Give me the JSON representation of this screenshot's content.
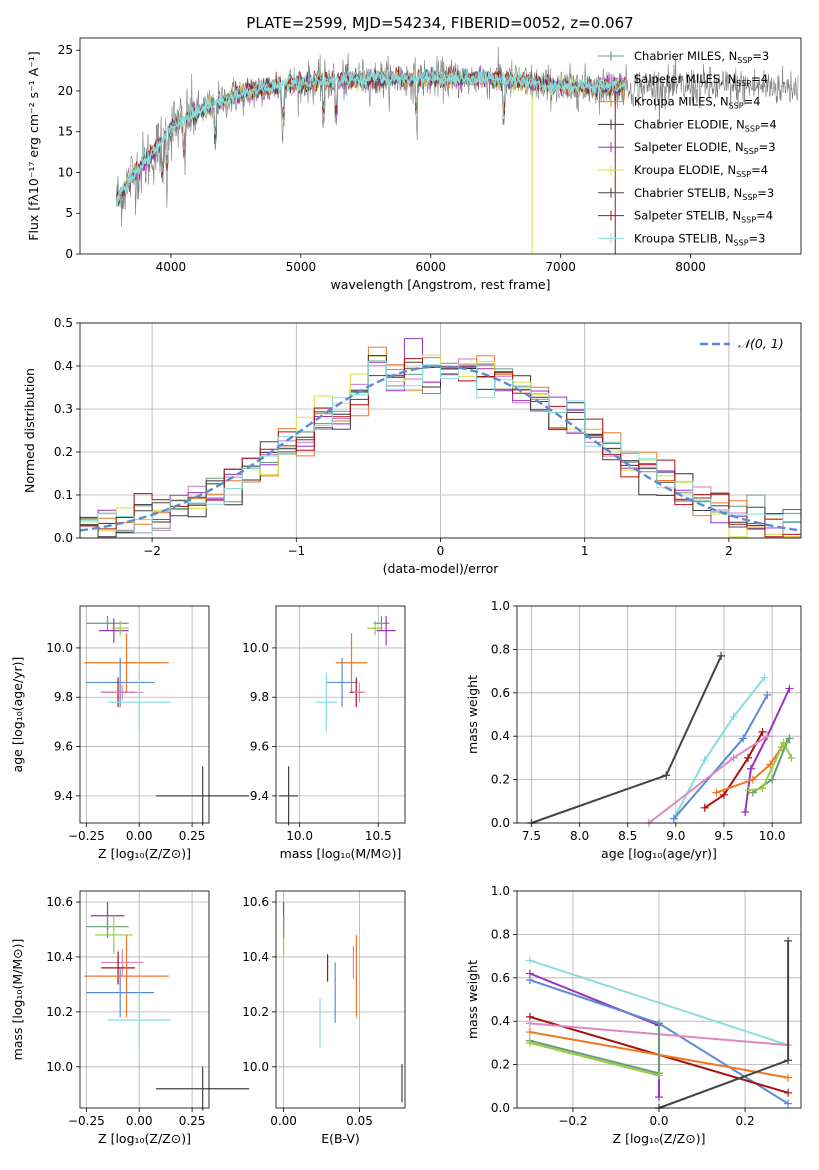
{
  "figure": {
    "title": "PLATE=2599, MJD=54234, FIBERID=0052, z=0.067",
    "colors": [
      "#6a9a7a",
      "#cc77cc",
      "#ee7722",
      "#333333",
      "#9933bb",
      "#dddd44",
      "#444444",
      "#aa1111",
      "#88dddd",
      "#5b8bd6",
      "#dd88bb",
      "#99cc44"
    ]
  },
  "chart_data": [
    {
      "id": "spectrum",
      "type": "line",
      "xlabel": "wavelength [Angstrom, rest frame]",
      "ylabel": "Flux [fλ10⁻¹⁷ erg cm⁻² s⁻¹ A⁻¹]",
      "xlim": [
        3300,
        8850
      ],
      "ylim": [
        0,
        26.5
      ],
      "xticks": [
        4000,
        5000,
        6000,
        7000,
        8000
      ],
      "yticks": [
        0,
        5,
        10,
        15,
        20,
        25
      ],
      "grid": false,
      "legend_position": "top-right",
      "legend": [
        "Chabrier MILES, N_SSP=3",
        "Salpeter MILES, N_SSP=4",
        "Kroupa MILES, N_SSP=4",
        "Chabrier ELODIE, N_SSP=4",
        "Salpeter ELODIE, N_SSP=3",
        "Kroupa ELODIE, N_SSP=4",
        "Chabrier STELIB, N_SSP=3",
        "Salpeter STELIB, N_SSP=4",
        "Kroupa STELIB, N_SSP=3"
      ],
      "legend_colors": [
        "#6a9a7a",
        "#cc77cc",
        "#ee7722",
        "#333333",
        "#9933bb",
        "#dddd44",
        "#444444",
        "#aa1111",
        "#88dddd"
      ],
      "continuum": {
        "x": [
          3580,
          3700,
          3900,
          4000,
          4200,
          4500,
          4800,
          5000,
          5500,
          6000,
          6500,
          7000,
          7300,
          7500
        ],
        "y": [
          6.5,
          9.5,
          13,
          15.5,
          17.5,
          19.5,
          20.5,
          21,
          21.5,
          21.5,
          21.5,
          20.5,
          20.5,
          20.5
        ]
      },
      "data_x_range": [
        3580,
        8830
      ],
      "model_x_range": [
        3580,
        7500
      ]
    },
    {
      "id": "residuals",
      "type": "histogram",
      "xlabel": "(data-model)/error",
      "ylabel": "Normed distribution",
      "xlim": [
        -2.5,
        2.5
      ],
      "ylim": [
        0,
        0.5
      ],
      "xticks": [
        -2,
        -1,
        0,
        1,
        2
      ],
      "yticks": [
        0.0,
        0.1,
        0.2,
        0.3,
        0.4,
        0.5
      ],
      "grid": true,
      "bins": 40,
      "bin_range": [
        -2.5,
        2.5
      ],
      "gaussian_legend": "𝒩(0, 1)",
      "gaussian_color": "#5b8bd6",
      "n_models": 9,
      "peak_values": [
        0.47,
        0.45,
        0.48,
        0.43,
        0.46
      ]
    },
    {
      "id": "age-vs-Z",
      "type": "errorbar",
      "xlabel": "Z [log₁₀(Z/Z⊙)]",
      "ylabel": "age  [log₁₀(age/yr)]",
      "xlim": [
        -0.28,
        0.33
      ],
      "ylim": [
        9.29,
        10.17
      ],
      "xticks": [
        -0.25,
        0.0,
        0.25
      ],
      "xticklabels": [
        "−0.25",
        "0.00",
        "0.25"
      ],
      "yticks": [
        9.4,
        9.6,
        9.8,
        10.0
      ],
      "grid": true,
      "points": [
        {
          "x": -0.15,
          "y": 10.1,
          "xerr": 0.1,
          "yerr": 0.03,
          "color": "#6a9a7a"
        },
        {
          "x": -0.12,
          "y": 10.07,
          "xerr": 0.07,
          "yerr": 0.05,
          "color": "#9933bb"
        },
        {
          "x": -0.09,
          "y": 10.08,
          "xerr": 0.04,
          "yerr": 0.03,
          "color": "#99cc44"
        },
        {
          "x": -0.06,
          "y": 9.94,
          "xerr": 0.2,
          "yerr": 0.12,
          "color": "#ee7722"
        },
        {
          "x": -0.09,
          "y": 9.86,
          "xerr": 0.16,
          "yerr": 0.1,
          "color": "#5b8bd6"
        },
        {
          "x": -0.1,
          "y": 9.82,
          "xerr": 0.08,
          "yerr": 0.06,
          "color": "#aa1111"
        },
        {
          "x": -0.08,
          "y": 9.82,
          "xerr": 0.1,
          "yerr": 0.03,
          "color": "#dd88bb"
        },
        {
          "x": 0.0,
          "y": 9.78,
          "xerr": 0.15,
          "yerr": 0.12,
          "color": "#88dddd"
        },
        {
          "x": 0.3,
          "y": 9.4,
          "xerr": 0.22,
          "yerr": 0.12,
          "color": "#444444"
        }
      ]
    },
    {
      "id": "age-vs-mass",
      "type": "errorbar",
      "xlabel": "mass [log₁₀(M/M⊙)]",
      "xlim": [
        9.85,
        10.67
      ],
      "ylim": [
        9.29,
        10.17
      ],
      "xticks": [
        10.0,
        10.5
      ],
      "xticklabels": [
        "10.0",
        "10.5"
      ],
      "yticks": [
        9.4,
        9.6,
        9.8,
        10.0
      ],
      "grid": true,
      "points": [
        {
          "x": 10.52,
          "y": 10.1,
          "xerr": 0.05,
          "yerr": 0.03,
          "color": "#6a9a7a"
        },
        {
          "x": 10.55,
          "y": 10.07,
          "xerr": 0.06,
          "yerr": 0.06,
          "color": "#9933bb"
        },
        {
          "x": 10.48,
          "y": 10.08,
          "xerr": 0.05,
          "yerr": 0.03,
          "color": "#99cc44"
        },
        {
          "x": 10.33,
          "y": 9.94,
          "xerr": 0.1,
          "yerr": 0.12,
          "color": "#ee7722"
        },
        {
          "x": 10.27,
          "y": 9.86,
          "xerr": 0.1,
          "yerr": 0.1,
          "color": "#5b8bd6"
        },
        {
          "x": 10.36,
          "y": 9.82,
          "xerr": 0.04,
          "yerr": 0.06,
          "color": "#aa1111"
        },
        {
          "x": 10.38,
          "y": 9.82,
          "xerr": 0.04,
          "yerr": 0.04,
          "color": "#dd88bb"
        },
        {
          "x": 10.17,
          "y": 9.78,
          "xerr": 0.07,
          "yerr": 0.12,
          "color": "#88dddd"
        },
        {
          "x": 9.93,
          "y": 9.4,
          "xerr": 0.06,
          "yerr": 0.12,
          "color": "#444444"
        }
      ]
    },
    {
      "id": "massweight-vs-age",
      "type": "line",
      "xlabel": "age  [log₁₀(age/yr)]",
      "ylabel": "mass weight",
      "xlim": [
        7.35,
        10.3
      ],
      "ylim": [
        0,
        1.0
      ],
      "xticks": [
        7.5,
        8.0,
        8.5,
        9.0,
        9.5,
        10.0
      ],
      "xticklabels": [
        "7.5",
        "8.0",
        "8.5",
        "9.0",
        "9.5",
        "10.0"
      ],
      "yticks": [
        0.0,
        0.2,
        0.4,
        0.6,
        0.8,
        1.0
      ],
      "grid": true,
      "series": [
        {
          "color": "#444444",
          "x": [
            7.5,
            8.9,
            9.47
          ],
          "y": [
            0.0,
            0.22,
            0.77
          ]
        },
        {
          "color": "#88dddd",
          "x": [
            8.98,
            9.3,
            9.6,
            9.92
          ],
          "y": [
            0.02,
            0.29,
            0.49,
            0.67
          ]
        },
        {
          "color": "#5b8bd6",
          "x": [
            8.98,
            9.7,
            9.95
          ],
          "y": [
            0.02,
            0.39,
            0.59
          ]
        },
        {
          "color": "#9933bb",
          "x": [
            9.72,
            9.78,
            9.95,
            10.18
          ],
          "y": [
            0.05,
            0.25,
            0.4,
            0.62
          ]
        },
        {
          "color": "#aa1111",
          "x": [
            9.3,
            9.5,
            9.75,
            9.9
          ],
          "y": [
            0.07,
            0.13,
            0.3,
            0.42
          ]
        },
        {
          "color": "#dd88bb",
          "x": [
            8.72,
            9.6,
            9.95
          ],
          "y": [
            0.0,
            0.3,
            0.4
          ]
        },
        {
          "color": "#ee7722",
          "x": [
            9.42,
            9.8,
            9.98,
            10.1
          ],
          "y": [
            0.14,
            0.2,
            0.27,
            0.35
          ]
        },
        {
          "color": "#6a9a7a",
          "x": [
            9.8,
            10.0,
            10.15,
            10.18
          ],
          "y": [
            0.14,
            0.2,
            0.37,
            0.39
          ]
        },
        {
          "color": "#99cc44",
          "x": [
            9.76,
            9.9,
            10.12,
            10.2
          ],
          "y": [
            0.15,
            0.16,
            0.37,
            0.3
          ]
        }
      ]
    },
    {
      "id": "mass-vs-Z",
      "type": "errorbar",
      "xlabel": "Z [log₁₀(Z/Z⊙)]",
      "ylabel": "mass [log₁₀(M/M⊙)]",
      "xlim": [
        -0.28,
        0.33
      ],
      "ylim": [
        9.85,
        10.64
      ],
      "xticks": [
        -0.25,
        0.0,
        0.25
      ],
      "xticklabels": [
        "−0.25",
        "0.00",
        "0.25"
      ],
      "yticks": [
        10.0,
        10.2,
        10.4,
        10.6
      ],
      "grid": true,
      "points": [
        {
          "x": -0.15,
          "y": 10.55,
          "xerr": 0.08,
          "yerr": 0.05,
          "color": "#9933bb"
        },
        {
          "x": -0.15,
          "y": 10.51,
          "xerr": 0.1,
          "yerr": 0.04,
          "color": "#6a9a7a"
        },
        {
          "x": -0.12,
          "y": 10.48,
          "xerr": 0.09,
          "yerr": 0.07,
          "color": "#99cc44"
        },
        {
          "x": -0.08,
          "y": 10.38,
          "xerr": 0.1,
          "yerr": 0.05,
          "color": "#dd88bb"
        },
        {
          "x": -0.1,
          "y": 10.36,
          "xerr": 0.08,
          "yerr": 0.06,
          "color": "#aa1111"
        },
        {
          "x": -0.06,
          "y": 10.33,
          "xerr": 0.2,
          "yerr": 0.15,
          "color": "#ee7722"
        },
        {
          "x": -0.09,
          "y": 10.27,
          "xerr": 0.16,
          "yerr": 0.09,
          "color": "#5b8bd6"
        },
        {
          "x": 0.0,
          "y": 10.17,
          "xerr": 0.15,
          "yerr": 0.1,
          "color": "#88dddd"
        },
        {
          "x": 0.3,
          "y": 9.92,
          "xerr": 0.22,
          "yerr": 0.08,
          "color": "#444444"
        }
      ]
    },
    {
      "id": "mass-vs-ebv",
      "type": "errorbar",
      "xlabel": "E(B-V)",
      "xlim": [
        -0.005,
        0.08
      ],
      "ylim": [
        9.85,
        10.64
      ],
      "xticks": [
        0.0,
        0.05
      ],
      "xticklabels": [
        "0.00",
        "0.05"
      ],
      "yticks": [
        10.0,
        10.2,
        10.4,
        10.6
      ],
      "grid": true,
      "points": [
        {
          "x": 0.0,
          "y": 10.55,
          "xerr": 0.0,
          "yerr": 0.05,
          "color": "#9933bb"
        },
        {
          "x": 0.0,
          "y": 10.48,
          "xerr": 0.0,
          "yerr": 0.07,
          "color": "#99cc44"
        },
        {
          "x": 0.0,
          "y": 10.51,
          "xerr": 0.0,
          "yerr": 0.04,
          "color": "#6a9a7a"
        },
        {
          "x": 0.029,
          "y": 10.36,
          "xerr": 0.0,
          "yerr": 0.05,
          "color": "#aa1111"
        },
        {
          "x": 0.046,
          "y": 10.38,
          "xerr": 0.0,
          "yerr": 0.06,
          "color": "#dd88bb"
        },
        {
          "x": 0.048,
          "y": 10.33,
          "xerr": 0.0,
          "yerr": 0.15,
          "color": "#ee7722"
        },
        {
          "x": 0.034,
          "y": 10.27,
          "xerr": 0.0,
          "yerr": 0.11,
          "color": "#5b8bd6"
        },
        {
          "x": 0.024,
          "y": 10.16,
          "xerr": 0.0,
          "yerr": 0.09,
          "color": "#88dddd"
        },
        {
          "x": 0.078,
          "y": 9.94,
          "xerr": 0.0,
          "yerr": 0.07,
          "color": "#444444"
        }
      ]
    },
    {
      "id": "massweight-vs-Z",
      "type": "line",
      "xlabel": "Z [log₁₀(Z/Z⊙)]",
      "ylabel": "mass weight",
      "xlim": [
        -0.33,
        0.33
      ],
      "ylim": [
        0,
        1.0
      ],
      "xticks": [
        -0.2,
        0.0,
        0.2
      ],
      "xticklabels": [
        "−0.2",
        "0.0",
        "0.2"
      ],
      "yticks": [
        0.0,
        0.2,
        0.4,
        0.6,
        0.8,
        1.0
      ],
      "grid": true,
      "series": [
        {
          "color": "#88dddd",
          "x": [
            -0.3,
            0.3
          ],
          "y": [
            0.68,
            0.29
          ]
        },
        {
          "color": "#9933bb",
          "x": [
            -0.3,
            0.0,
            0.0
          ],
          "y": [
            0.62,
            0.38,
            0.05
          ]
        },
        {
          "color": "#5b8bd6",
          "x": [
            -0.3,
            0.0,
            0.3
          ],
          "y": [
            0.59,
            0.39,
            0.02
          ]
        },
        {
          "color": "#aa1111",
          "x": [
            -0.3,
            0.3
          ],
          "y": [
            0.42,
            0.07
          ]
        },
        {
          "color": "#dd88bb",
          "x": [
            -0.3,
            0.3
          ],
          "y": [
            0.39,
            0.29
          ]
        },
        {
          "color": "#ee7722",
          "x": [
            -0.3,
            0.3
          ],
          "y": [
            0.35,
            0.14
          ]
        },
        {
          "color": "#6a9a7a",
          "x": [
            -0.3,
            0.0,
            0.0
          ],
          "y": [
            0.31,
            0.16,
            0.39
          ]
        },
        {
          "color": "#99cc44",
          "x": [
            -0.3,
            0.0
          ],
          "y": [
            0.3,
            0.15
          ]
        },
        {
          "color": "#444444",
          "x": [
            0.0,
            0.3,
            0.3
          ],
          "y": [
            0.0,
            0.22,
            0.77
          ]
        }
      ]
    }
  ]
}
